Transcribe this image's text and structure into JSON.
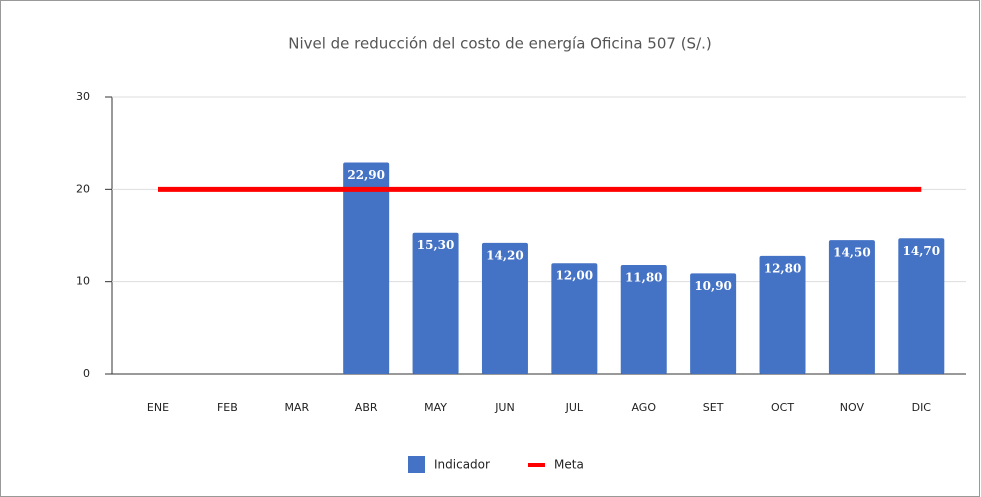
{
  "chart_data": {
    "type": "bar",
    "title": "Nivel de reducción del costo de energía Oficina 507 (S/.)",
    "categories": [
      "ENE",
      "FEB",
      "MAR",
      "ABR",
      "MAY",
      "JUN",
      "JUL",
      "AGO",
      "SET",
      "OCT",
      "NOV",
      "DIC"
    ],
    "series": [
      {
        "name": "Indicador",
        "type": "bar",
        "color": "#4472c4",
        "values": [
          null,
          null,
          null,
          22.9,
          15.3,
          14.2,
          12.0,
          11.8,
          10.9,
          12.8,
          14.5,
          14.7
        ],
        "value_labels": [
          null,
          null,
          null,
          "22,90",
          "15,30",
          "14,20",
          "12,00",
          "11,80",
          "10,90",
          "12,80",
          "14,50",
          "14,70"
        ]
      },
      {
        "name": "Meta",
        "type": "line",
        "color": "#ff0000",
        "values": [
          20,
          20,
          20,
          20,
          20,
          20,
          20,
          20,
          20,
          20,
          20,
          20
        ]
      }
    ],
    "ylim": [
      0,
      30
    ],
    "yticks": [
      0,
      10,
      20,
      30
    ],
    "grid": true,
    "legend": "bottom"
  }
}
